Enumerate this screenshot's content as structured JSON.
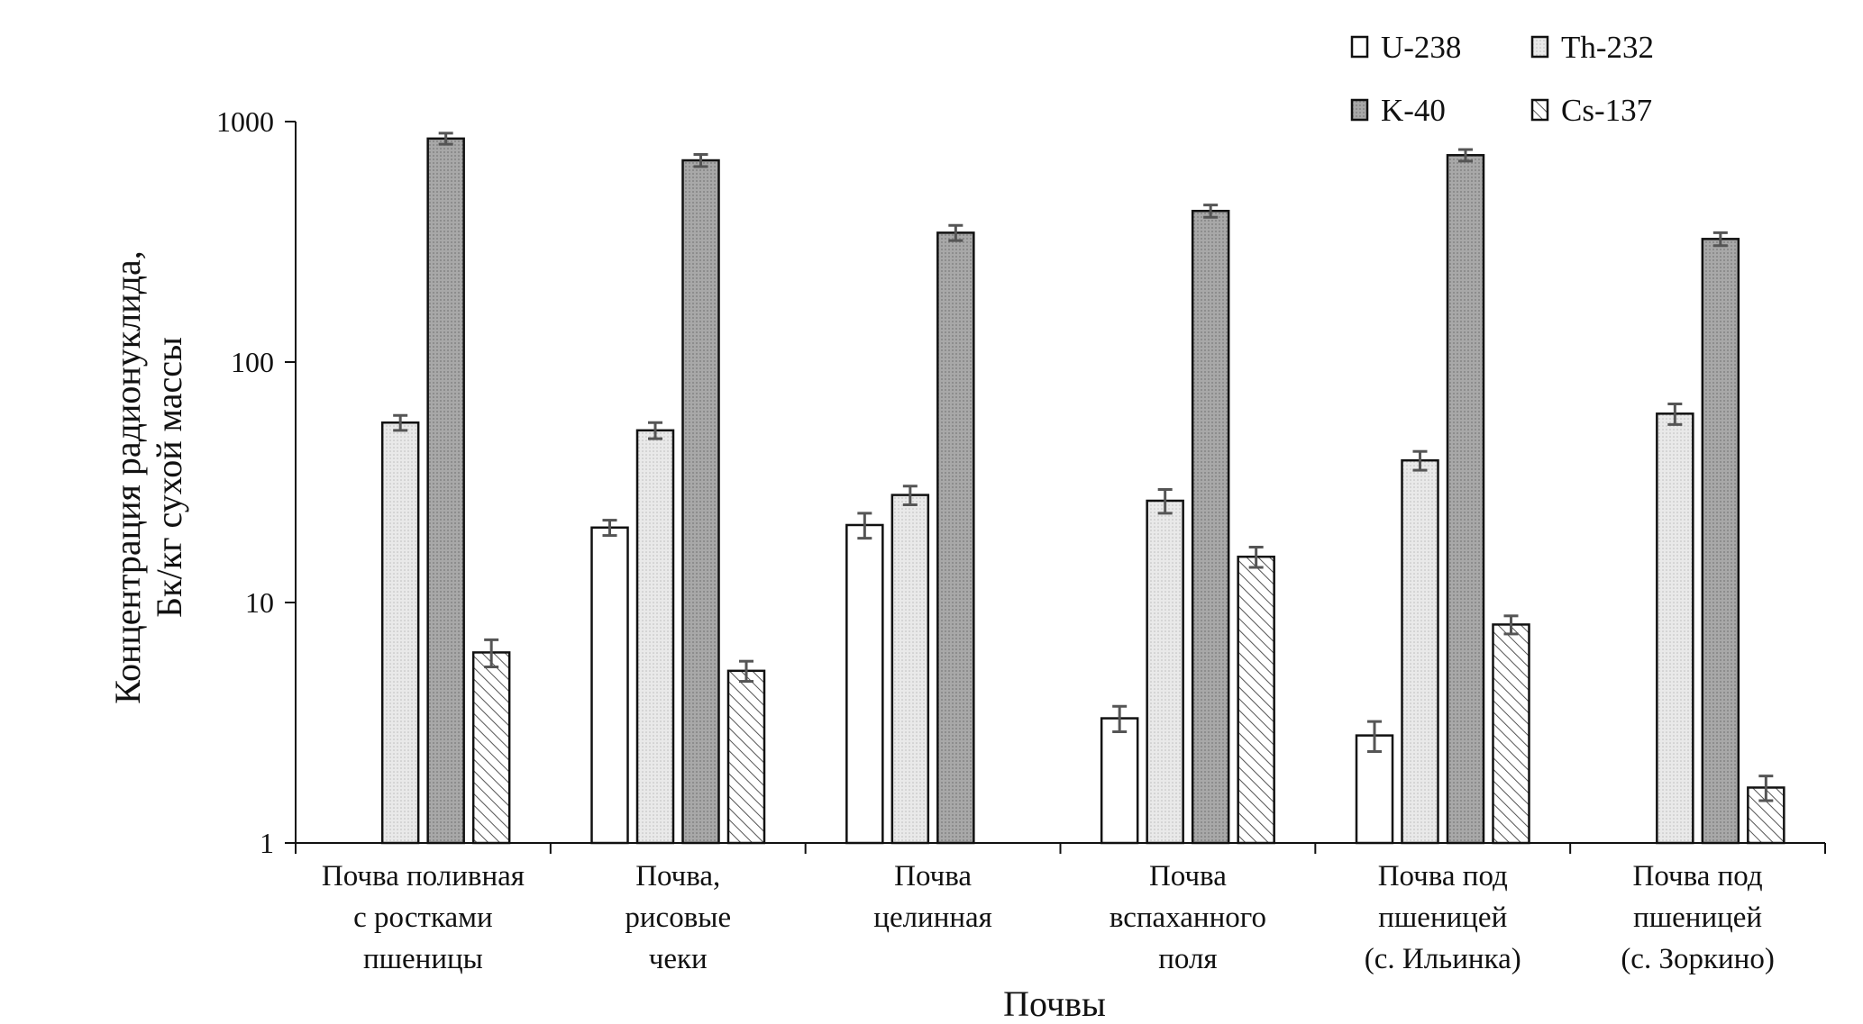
{
  "chart_data": {
    "type": "bar",
    "xlabel": "Почвы",
    "ylabel_lines": [
      "Концентрация радионуклида,",
      "Бк/кг сухой массы"
    ],
    "yscale": "log",
    "ylim": [
      1,
      1000
    ],
    "y_ticks": [
      {
        "value": 1,
        "label": "1"
      },
      {
        "value": 10,
        "label": "10"
      },
      {
        "value": 100,
        "label": "100"
      },
      {
        "value": 1000,
        "label": "1000"
      }
    ],
    "categories": [
      [
        "Почва поливная",
        "с ростками",
        "пшеницы"
      ],
      [
        "Почва,",
        "рисовые",
        "чеки"
      ],
      [
        "Почва",
        "целинная"
      ],
      [
        "Почва",
        "вспаханного",
        "поля"
      ],
      [
        "Почва под",
        "пшеницей",
        "(с. Ильинка)"
      ],
      [
        "Почва под",
        "пшеницей",
        "(с. Зоркино)"
      ]
    ],
    "series": [
      {
        "name": "U-238",
        "fill": "#ffffff",
        "pattern": "none",
        "values": [
          null,
          20.5,
          21,
          3.3,
          2.8,
          null
        ],
        "errors": [
          null,
          1.5,
          2.5,
          0.4,
          0.4,
          null
        ]
      },
      {
        "name": "Th-232",
        "fill": "#e9e9e9",
        "pattern": "dots",
        "values": [
          56,
          52,
          28,
          26.5,
          39,
          61
        ],
        "errors": [
          4,
          4,
          2.5,
          3,
          3.5,
          6
        ]
      },
      {
        "name": "K-40",
        "fill": "#a6a6a6",
        "pattern": "dots",
        "values": [
          850,
          690,
          345,
          425,
          725,
          325
        ],
        "errors": [
          45,
          40,
          25,
          25,
          40,
          20
        ]
      },
      {
        "name": "Cs-137",
        "fill": "#ffffff",
        "pattern": "hatch",
        "values": [
          6.2,
          5.2,
          null,
          15.5,
          8.1,
          1.7
        ],
        "errors": [
          0.8,
          0.5,
          null,
          1.5,
          0.7,
          0.2
        ]
      }
    ],
    "legend_position": "top-right",
    "grid": false,
    "colors": {
      "axis": "#111111",
      "bar_outline": "#111111",
      "error_bar": "#555555",
      "hatch": "#555555"
    }
  }
}
